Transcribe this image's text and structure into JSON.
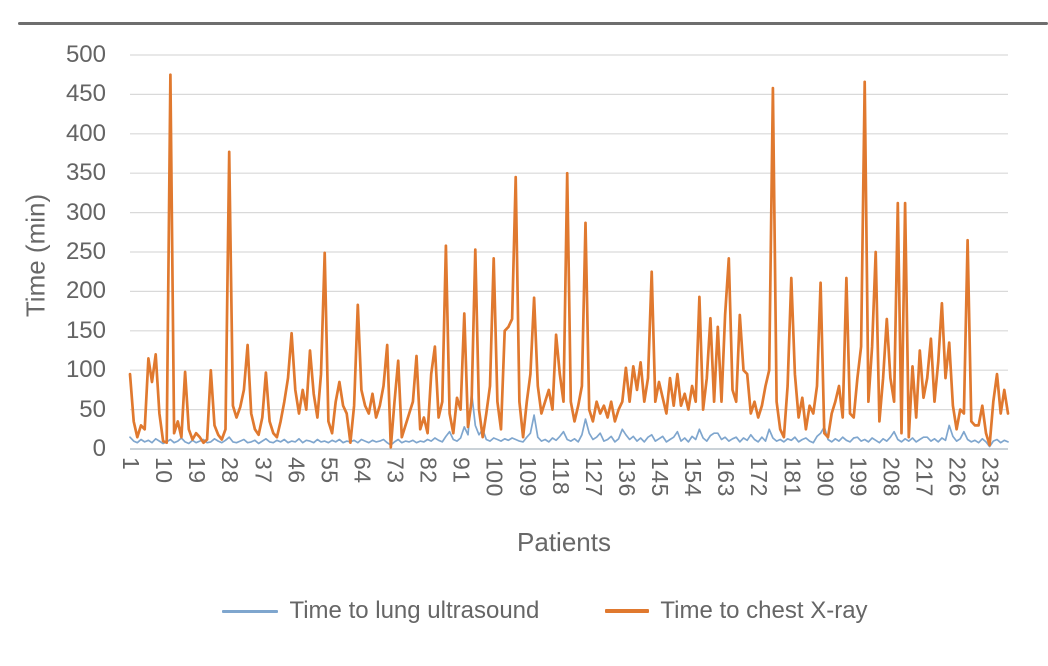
{
  "figure": {
    "background": "#ffffff",
    "top_rule_color": "#6e6e6e"
  },
  "chart_data": {
    "type": "line",
    "title": "",
    "xlabel": "Patients",
    "ylabel": "Time (min)",
    "ylim": [
      0,
      500
    ],
    "grid": true,
    "legend_position": "bottom",
    "grid_color": "#d9d9d9",
    "axis_line_color": "#c2cbd2",
    "text_color": "#666666",
    "y_ticks": [
      0,
      50,
      100,
      150,
      200,
      250,
      300,
      350,
      400,
      450,
      500
    ],
    "x_ticks": [
      1,
      10,
      19,
      28,
      37,
      46,
      55,
      64,
      73,
      82,
      91,
      100,
      109,
      118,
      127,
      136,
      145,
      154,
      163,
      172,
      181,
      190,
      199,
      208,
      217,
      226,
      235
    ],
    "x_count": 240,
    "series": [
      {
        "name": "Time to lung ultrasound",
        "color": "#7fa6ce",
        "width": 1.7,
        "values": [
          15,
          10,
          8,
          12,
          9,
          11,
          8,
          13,
          10,
          7,
          9,
          12,
          8,
          10,
          14,
          9,
          7,
          11,
          8,
          10,
          12,
          8,
          9,
          13,
          10,
          8,
          11,
          15,
          9,
          8,
          10,
          12,
          8,
          9,
          11,
          7,
          10,
          13,
          9,
          8,
          11,
          9,
          12,
          8,
          10,
          9,
          13,
          8,
          11,
          10,
          8,
          12,
          9,
          10,
          8,
          11,
          9,
          12,
          8,
          10,
          9,
          11,
          8,
          12,
          10,
          8,
          11,
          9,
          10,
          12,
          8,
          5,
          9,
          12,
          8,
          10,
          9,
          11,
          8,
          10,
          9,
          12,
          10,
          14,
          11,
          9,
          16,
          22,
          12,
          10,
          14,
          28,
          18,
          72,
          30,
          18,
          25,
          12,
          10,
          14,
          12,
          10,
          13,
          11,
          14,
          12,
          10,
          9,
          15,
          20,
          43,
          15,
          10,
          12,
          9,
          14,
          11,
          16,
          22,
          12,
          10,
          13,
          9,
          18,
          38,
          20,
          12,
          15,
          20,
          10,
          12,
          16,
          9,
          13,
          25,
          18,
          12,
          16,
          10,
          14,
          9,
          15,
          18,
          10,
          13,
          16,
          9,
          12,
          15,
          22,
          10,
          14,
          9,
          16,
          12,
          25,
          14,
          10,
          17,
          20,
          20,
          12,
          15,
          10,
          13,
          15,
          9,
          14,
          11,
          18,
          12,
          9,
          15,
          10,
          25,
          14,
          10,
          12,
          9,
          13,
          11,
          15,
          9,
          12,
          14,
          10,
          8,
          16,
          20,
          28,
          12,
          9,
          13,
          10,
          15,
          11,
          9,
          14,
          15,
          10,
          12,
          9,
          14,
          11,
          8,
          13,
          10,
          15,
          22,
          12,
          9,
          13,
          10,
          14,
          9,
          12,
          15,
          15,
          10,
          13,
          9,
          14,
          11,
          30,
          16,
          10,
          13,
          22,
          12,
          9,
          11,
          8,
          13,
          9,
          3,
          10,
          12,
          8,
          11,
          9
        ]
      },
      {
        "name": "Time to chest X-ray",
        "color": "#e0792f",
        "width": 2.7,
        "values": [
          95,
          35,
          15,
          30,
          25,
          115,
          85,
          120,
          45,
          10,
          8,
          475,
          20,
          35,
          15,
          98,
          25,
          12,
          20,
          15,
          8,
          12,
          100,
          30,
          18,
          12,
          25,
          377,
          55,
          40,
          53,
          75,
          132,
          45,
          25,
          18,
          40,
          97,
          35,
          20,
          15,
          35,
          60,
          90,
          147,
          75,
          45,
          75,
          50,
          125,
          70,
          40,
          95,
          249,
          35,
          20,
          60,
          85,
          55,
          45,
          8,
          55,
          183,
          75,
          55,
          45,
          70,
          40,
          55,
          80,
          132,
          2,
          60,
          112,
          15,
          30,
          45,
          60,
          118,
          25,
          40,
          20,
          95,
          130,
          40,
          60,
          258,
          45,
          20,
          65,
          50,
          172,
          28,
          60,
          253,
          50,
          15,
          45,
          80,
          242,
          60,
          25,
          150,
          155,
          165,
          345,
          60,
          15,
          60,
          95,
          192,
          80,
          45,
          60,
          75,
          50,
          145,
          95,
          60,
          350,
          60,
          35,
          55,
          80,
          287,
          50,
          35,
          60,
          45,
          55,
          40,
          60,
          35,
          50,
          60,
          103,
          60,
          105,
          75,
          110,
          60,
          90,
          225,
          60,
          85,
          65,
          45,
          90,
          55,
          95,
          55,
          70,
          50,
          80,
          60,
          193,
          50,
          90,
          166,
          60,
          155,
          60,
          170,
          242,
          75,
          60,
          170,
          100,
          95,
          45,
          60,
          40,
          55,
          80,
          100,
          458,
          60,
          25,
          15,
          80,
          217,
          95,
          40,
          65,
          25,
          55,
          45,
          80,
          211,
          20,
          15,
          45,
          60,
          80,
          40,
          217,
          45,
          40,
          90,
          130,
          466,
          60,
          130,
          250,
          35,
          90,
          165,
          90,
          60,
          312,
          20,
          312,
          15,
          105,
          40,
          125,
          65,
          90,
          140,
          60,
          110,
          185,
          90,
          135,
          55,
          25,
          50,
          45,
          265,
          35,
          30,
          30,
          55,
          20,
          5,
          60,
          95,
          45,
          75,
          45
        ]
      }
    ]
  }
}
